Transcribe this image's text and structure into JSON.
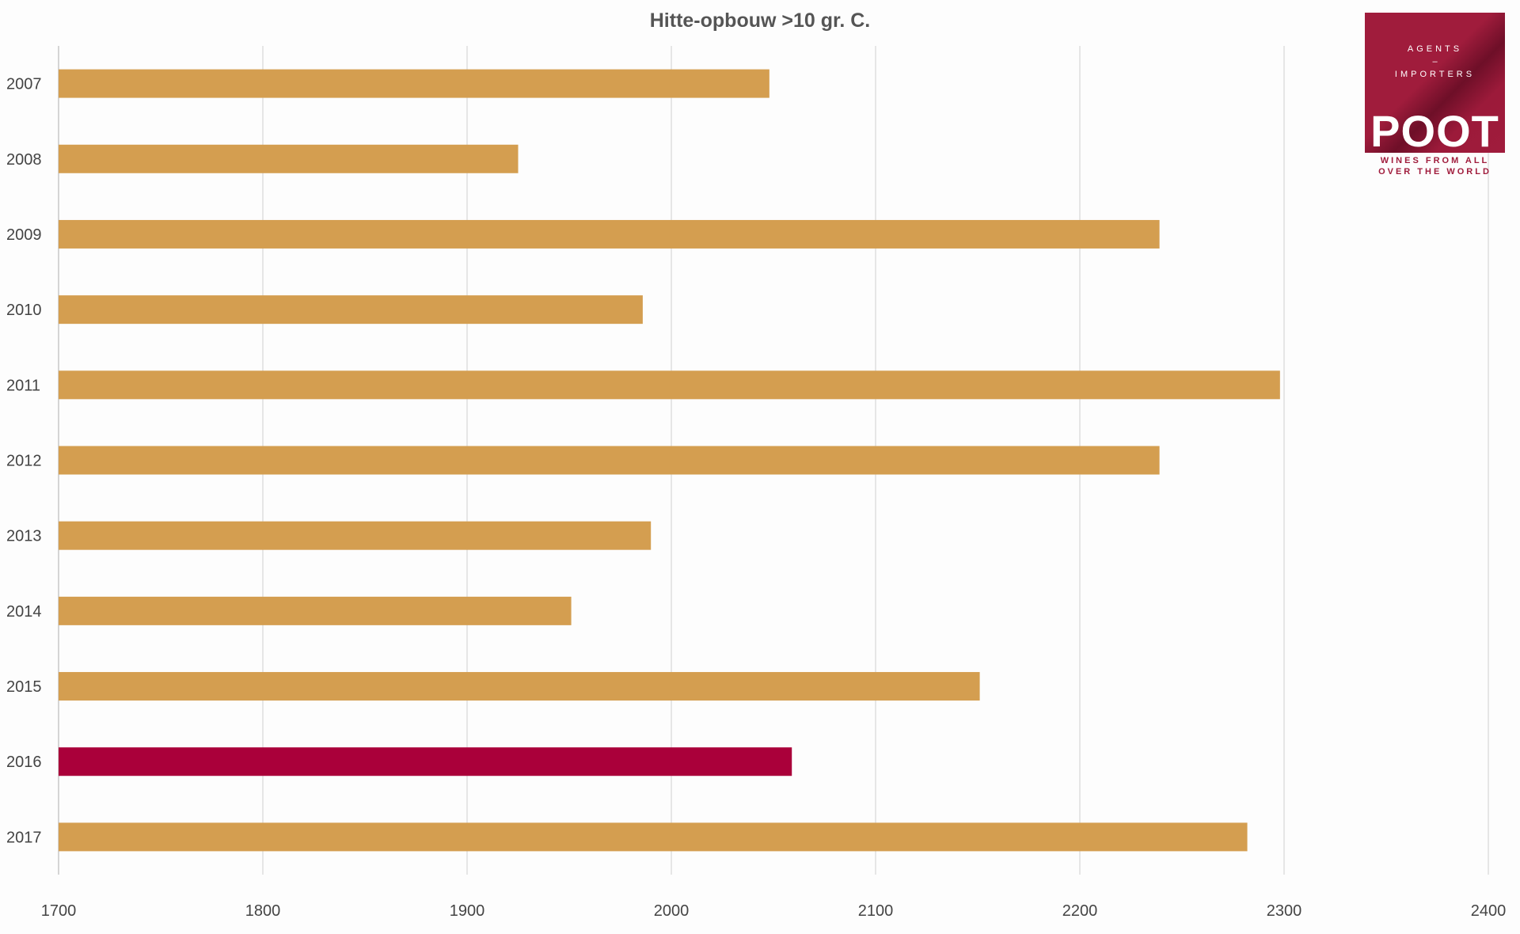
{
  "chart_data": {
    "type": "bar",
    "orientation": "horizontal",
    "title": "Hitte-opbouw >10 gr. C.",
    "xlabel": "",
    "ylabel": "",
    "categories": [
      "2007",
      "2008",
      "2009",
      "2010",
      "2011",
      "2012",
      "2013",
      "2014",
      "2015",
      "2016",
      "2017"
    ],
    "values": [
      2048,
      1925,
      2239,
      1986,
      2298,
      2239,
      1990,
      1951,
      2151,
      2059,
      2282
    ],
    "highlight_category": "2016",
    "xlim": [
      1700,
      2400
    ],
    "xticks": [
      1700,
      1800,
      1900,
      2000,
      2100,
      2200,
      2300,
      2400
    ],
    "grid": "vertical",
    "colors": {
      "bar": "#D49E50",
      "highlight": "#AA003A",
      "grid": "#D8D8D8",
      "axis": "#BBBBBB"
    }
  },
  "logo": {
    "line1": "AGENTS",
    "line2": "–",
    "line3": "IMPORTERS",
    "name": "POOT",
    "tagline1": "WINES FROM ALL",
    "tagline2": "OVER THE WORLD",
    "color": "#A01C3C"
  }
}
